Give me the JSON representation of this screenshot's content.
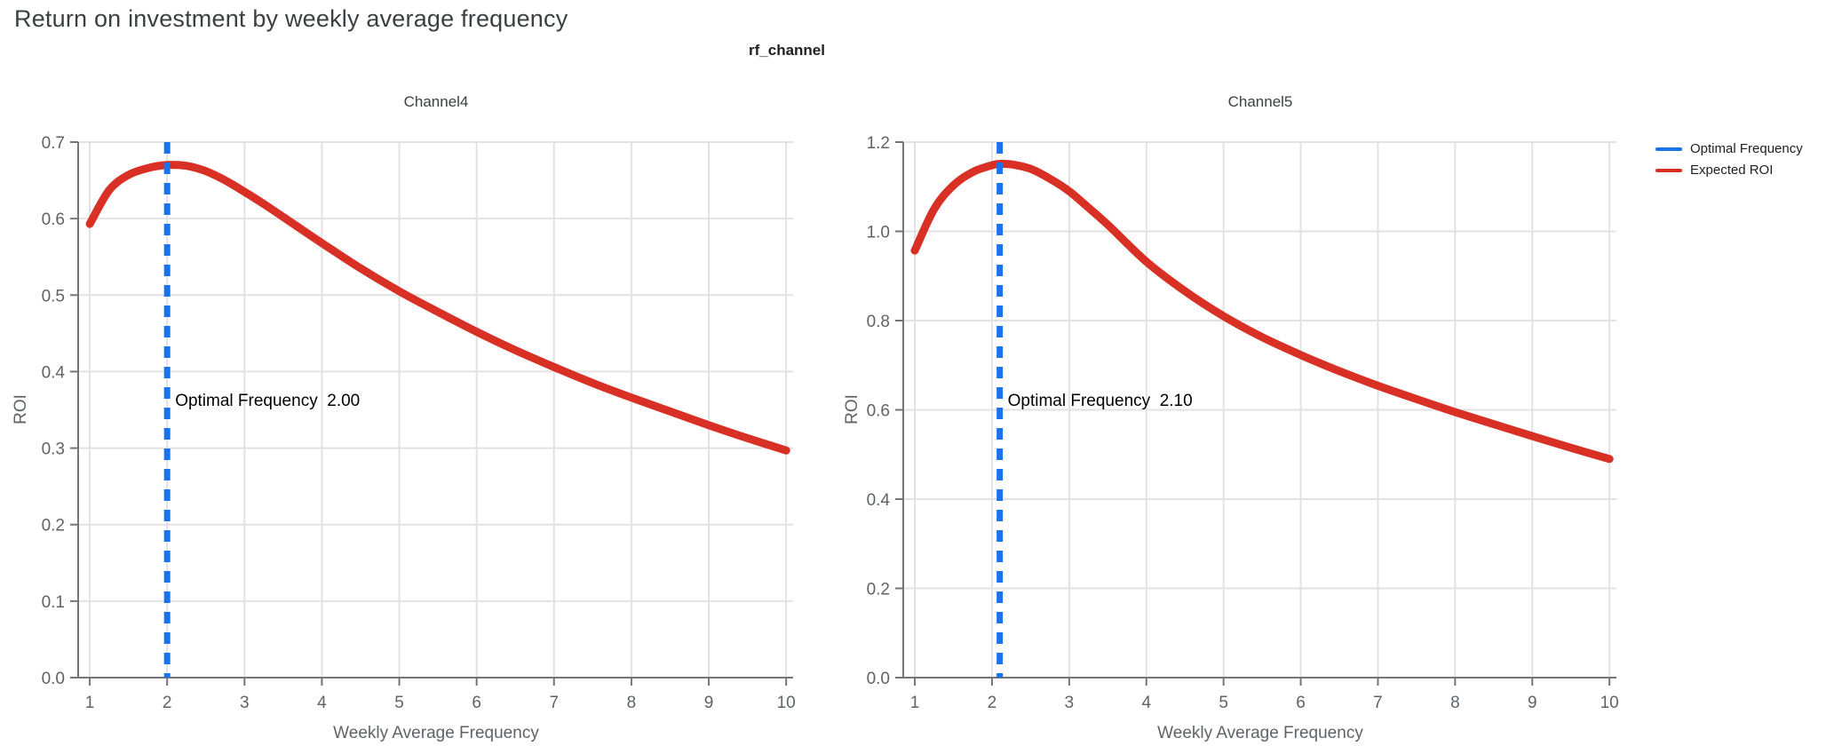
{
  "header": {
    "title": "Return on investment by weekly average frequency",
    "facet_title": "rf_channel"
  },
  "legend": {
    "items": [
      {
        "label": "Optimal Frequency",
        "color": "#1a73e8"
      },
      {
        "label": "Expected ROI",
        "color": "#d93025"
      }
    ]
  },
  "colors": {
    "curve_red": "#d93025",
    "vline_blue": "#1a73e8",
    "axis_line": "#757575",
    "gridline": "#e2e2e2",
    "tick_label": "#5f6368",
    "title_gray": "#3c4043",
    "annotation_black": "#000000"
  },
  "chart_data": [
    {
      "type": "line",
      "title": "Channel4",
      "xlabel": "Weekly Average Frequency",
      "ylabel": "ROI",
      "xlim": [
        0.85,
        10.09
      ],
      "ylim": [
        0.0,
        0.7
      ],
      "xticks": [
        1,
        2,
        3,
        4,
        5,
        6,
        7,
        8,
        9,
        10
      ],
      "yticks": [
        0.0,
        0.1,
        0.2,
        0.3,
        0.4,
        0.5,
        0.6,
        0.7
      ],
      "grid": true,
      "legend_position": "right-top",
      "optimal_frequency": 2.0,
      "annotation_label": "Optimal Frequency  2.00",
      "series": [
        {
          "name": "Expected ROI",
          "x": [
            1,
            1.25,
            1.5,
            1.75,
            2,
            2.25,
            2.5,
            2.75,
            3,
            3.25,
            3.5,
            4,
            4.5,
            5,
            5.5,
            6,
            6.5,
            7,
            7.5,
            8,
            8.5,
            9,
            9.5,
            10
          ],
          "y": [
            0.593,
            0.637,
            0.657,
            0.666,
            0.67,
            0.669,
            0.662,
            0.65,
            0.635,
            0.619,
            0.602,
            0.568,
            0.535,
            0.505,
            0.478,
            0.452,
            0.428,
            0.406,
            0.385,
            0.366,
            0.348,
            0.33,
            0.313,
            0.297
          ]
        }
      ]
    },
    {
      "type": "line",
      "title": "Channel5",
      "xlabel": "Weekly Average Frequency",
      "ylabel": "ROI",
      "xlim": [
        0.85,
        10.09
      ],
      "ylim": [
        0.0,
        1.2
      ],
      "xticks": [
        1,
        2,
        3,
        4,
        5,
        6,
        7,
        8,
        9,
        10
      ],
      "yticks": [
        0.0,
        0.2,
        0.4,
        0.6,
        0.8,
        1.0,
        1.2
      ],
      "grid": true,
      "legend_position": "right-top",
      "optimal_frequency": 2.1,
      "annotation_label": "Optimal Frequency  2.10",
      "series": [
        {
          "name": "Expected ROI",
          "x": [
            1,
            1.25,
            1.5,
            1.75,
            2,
            2.1,
            2.25,
            2.5,
            2.75,
            3,
            3.25,
            3.5,
            4,
            4.5,
            5,
            5.5,
            6,
            6.5,
            7,
            7.5,
            8,
            8.5,
            9,
            9.5,
            10
          ],
          "y": [
            0.957,
            1.05,
            1.103,
            1.133,
            1.148,
            1.151,
            1.15,
            1.14,
            1.118,
            1.09,
            1.053,
            1.015,
            0.932,
            0.866,
            0.81,
            0.763,
            0.723,
            0.687,
            0.654,
            0.624,
            0.595,
            0.568,
            0.541,
            0.515,
            0.49
          ]
        }
      ]
    }
  ]
}
